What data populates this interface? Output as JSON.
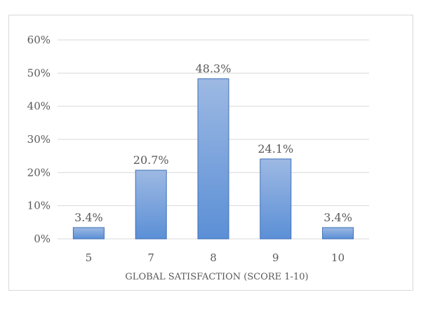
{
  "chart_data": {
    "type": "bar",
    "title": "",
    "xlabel": "GLOBAL SATISFACTION (SCORE 1-10)",
    "ylabel": "",
    "categories": [
      "5",
      "7",
      "8",
      "9",
      "10"
    ],
    "values": [
      3.4,
      20.7,
      48.3,
      24.1,
      3.4
    ],
    "data_labels": [
      "3.4%",
      "20.7%",
      "48.3%",
      "24.1%",
      "3.4%"
    ],
    "ylim": [
      0,
      60
    ],
    "yticks": [
      0,
      10,
      20,
      30,
      40,
      50,
      60
    ],
    "ytick_labels": [
      "0%",
      "10%",
      "20%",
      "30%",
      "40%",
      "50%",
      "60%"
    ],
    "grid": true,
    "legend": "none",
    "colors": {
      "bar_top": "#9DB9E3",
      "bar_bottom": "#5B8FD6",
      "bar_border": "#3F6FB6",
      "grid": "#D9D9D9",
      "text": "#595959",
      "frame": "#D9D9D9"
    }
  }
}
